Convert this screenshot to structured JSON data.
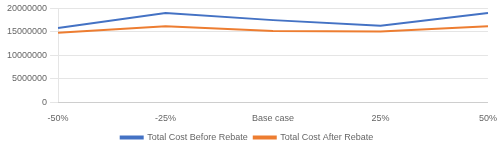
{
  "chart_data": {
    "type": "line",
    "categories": [
      "-50%",
      "-25%",
      "Base case",
      "25%",
      "50%"
    ],
    "series": [
      {
        "name": "Total Cost Before Rebate",
        "color": "#4472c4",
        "values": [
          15800000,
          19000000,
          17500000,
          16300000,
          19000000
        ]
      },
      {
        "name": "Total Cost After Rebate",
        "color": "#ed7d31",
        "values": [
          14800000,
          16200000,
          15200000,
          15100000,
          16200000
        ]
      }
    ],
    "ylim": [
      0,
      20000000
    ],
    "yticks": [
      0,
      5000000,
      10000000,
      15000000,
      20000000
    ],
    "grid": true,
    "legend": "bottom",
    "marker": "none"
  }
}
